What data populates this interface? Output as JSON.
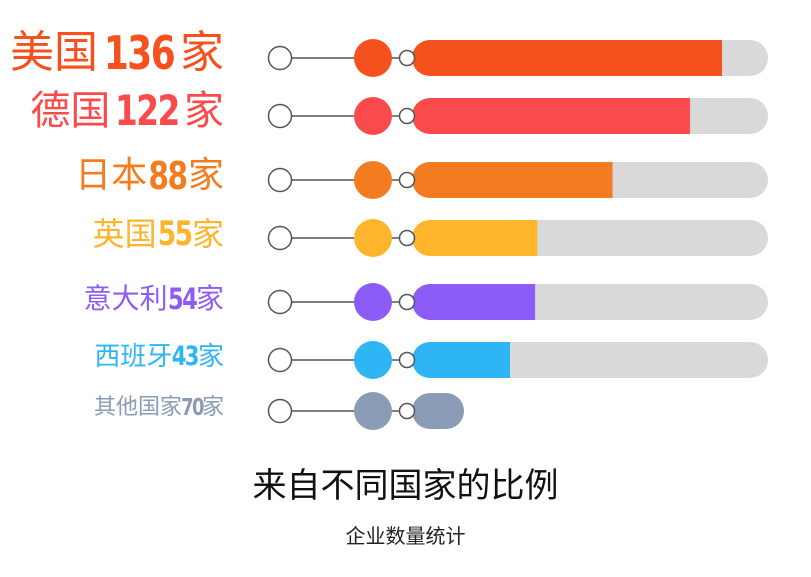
{
  "chart_data": {
    "type": "bar",
    "title": "来自不同国家的比例",
    "subtitle": "企业数量统计",
    "unit": "家",
    "xlim": [
      0,
      136
    ],
    "categories": [
      "美国",
      "德国",
      "日本",
      "英国",
      "意大利",
      "西班牙",
      "其他国家"
    ],
    "values": [
      136,
      122,
      88,
      55,
      54,
      43,
      70
    ],
    "number_labels": [
      "136",
      "122",
      "88",
      "55",
      "54",
      "43",
      "70"
    ],
    "colors": [
      "#F5511E",
      "#FB4A4C",
      "#F47C20",
      "#FEB52B",
      "#8D5CF6",
      "#2DB5F6",
      "#8A9BB5"
    ],
    "track_color": "#D9D9D9",
    "connector_color": "#555555",
    "rows": [
      {
        "country": "美国",
        "number": "136",
        "unit": "家"
      },
      {
        "country": "德国",
        "number": "122",
        "unit": "家"
      },
      {
        "country": "日本",
        "number": "88",
        "unit": "家"
      },
      {
        "country": "英国",
        "number": "55",
        "unit": "家"
      },
      {
        "country": "意大利",
        "number": "54",
        "unit": "家"
      },
      {
        "country": "西班牙",
        "number": "43",
        "unit": "家"
      },
      {
        "country": "其他国家",
        "number": "70",
        "unit": "家"
      }
    ],
    "last_row_has_track": false
  }
}
